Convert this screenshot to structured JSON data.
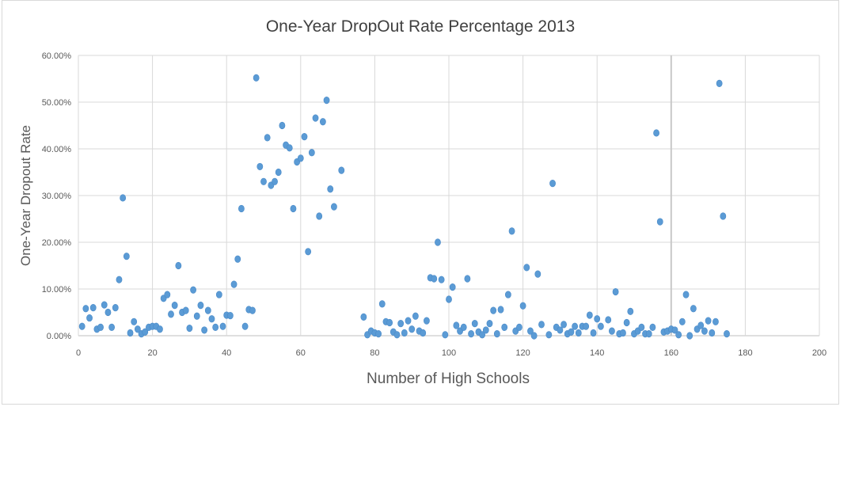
{
  "chart_data": {
    "type": "scatter",
    "title": "One-Year DropOut  Rate Percentage 2013",
    "xlabel": "Number of High Schools",
    "ylabel": "One-Year Dropout Rate",
    "xlim": [
      0,
      200
    ],
    "ylim": [
      0,
      60
    ],
    "x_ticks": [
      "0",
      "20",
      "40",
      "60",
      "80",
      "100",
      "120",
      "140",
      "160",
      "180",
      "200"
    ],
    "y_ticks": [
      "0.00%",
      "10.00%",
      "20.00%",
      "30.00%",
      "40.00%",
      "50.00%",
      "60.00%"
    ],
    "grid": true,
    "marker_color": "#5b9bd5",
    "points": [
      [
        1,
        2.0
      ],
      [
        2,
        5.8
      ],
      [
        3,
        3.8
      ],
      [
        4,
        6.0
      ],
      [
        5,
        1.4
      ],
      [
        6,
        1.8
      ],
      [
        7,
        6.6
      ],
      [
        8,
        5.0
      ],
      [
        9,
        1.8
      ],
      [
        10,
        6.0
      ],
      [
        11,
        12.0
      ],
      [
        12,
        29.5
      ],
      [
        13,
        17.0
      ],
      [
        14,
        0.6
      ],
      [
        15,
        3.0
      ],
      [
        16,
        1.4
      ],
      [
        17,
        0.4
      ],
      [
        18,
        0.8
      ],
      [
        19,
        1.8
      ],
      [
        20,
        2.0
      ],
      [
        21,
        2.0
      ],
      [
        22,
        1.4
      ],
      [
        23,
        8.0
      ],
      [
        24,
        8.8
      ],
      [
        25,
        4.6
      ],
      [
        26,
        6.5
      ],
      [
        27,
        15.0
      ],
      [
        28,
        5.0
      ],
      [
        29,
        5.4
      ],
      [
        30,
        1.6
      ],
      [
        31,
        9.8
      ],
      [
        32,
        4.2
      ],
      [
        33,
        6.5
      ],
      [
        34,
        1.2
      ],
      [
        35,
        5.4
      ],
      [
        36,
        3.6
      ],
      [
        37,
        1.8
      ],
      [
        38,
        8.8
      ],
      [
        39,
        2.0
      ],
      [
        40,
        4.4
      ],
      [
        41,
        4.3
      ],
      [
        42,
        11.0
      ],
      [
        43,
        16.4
      ],
      [
        44,
        27.2
      ],
      [
        45,
        2.0
      ],
      [
        46,
        5.6
      ],
      [
        47,
        5.4
      ],
      [
        48,
        55.2
      ],
      [
        49,
        36.2
      ],
      [
        50,
        33.0
      ],
      [
        51,
        42.4
      ],
      [
        52,
        32.2
      ],
      [
        53,
        33.0
      ],
      [
        54,
        35.0
      ],
      [
        55,
        45.0
      ],
      [
        56,
        40.8
      ],
      [
        57,
        40.2
      ],
      [
        58,
        27.2
      ],
      [
        59,
        37.2
      ],
      [
        60,
        38.0
      ],
      [
        61,
        42.6
      ],
      [
        62,
        18.0
      ],
      [
        63,
        39.2
      ],
      [
        64,
        46.6
      ],
      [
        65,
        25.6
      ],
      [
        66,
        45.8
      ],
      [
        67,
        50.4
      ],
      [
        68,
        31.4
      ],
      [
        69,
        27.6
      ],
      [
        71,
        35.4
      ],
      [
        77,
        4.0
      ],
      [
        78,
        0.2
      ],
      [
        79,
        1.0
      ],
      [
        80,
        0.6
      ],
      [
        81,
        0.4
      ],
      [
        82,
        6.8
      ],
      [
        83,
        3.0
      ],
      [
        84,
        2.8
      ],
      [
        85,
        0.8
      ],
      [
        86,
        0.2
      ],
      [
        87,
        2.6
      ],
      [
        88,
        0.6
      ],
      [
        89,
        3.2
      ],
      [
        90,
        1.4
      ],
      [
        91,
        4.2
      ],
      [
        92,
        1.0
      ],
      [
        93,
        0.6
      ],
      [
        94,
        3.2
      ],
      [
        95,
        12.4
      ],
      [
        96,
        12.2
      ],
      [
        97,
        20.0
      ],
      [
        98,
        12.0
      ],
      [
        99,
        0.2
      ],
      [
        100,
        7.8
      ],
      [
        101,
        10.4
      ],
      [
        102,
        2.2
      ],
      [
        103,
        1.0
      ],
      [
        104,
        1.8
      ],
      [
        105,
        12.2
      ],
      [
        106,
        0.4
      ],
      [
        107,
        2.6
      ],
      [
        108,
        0.8
      ],
      [
        109,
        0.2
      ],
      [
        110,
        1.2
      ],
      [
        111,
        2.6
      ],
      [
        112,
        5.4
      ],
      [
        113,
        0.4
      ],
      [
        114,
        5.6
      ],
      [
        115,
        1.8
      ],
      [
        116,
        8.8
      ],
      [
        117,
        22.4
      ],
      [
        118,
        1.0
      ],
      [
        119,
        1.8
      ],
      [
        120,
        6.4
      ],
      [
        121,
        14.6
      ],
      [
        122,
        1.0
      ],
      [
        123,
        0.0
      ],
      [
        124,
        13.2
      ],
      [
        125,
        2.4
      ],
      [
        127,
        0.2
      ],
      [
        128,
        32.6
      ],
      [
        129,
        1.8
      ],
      [
        130,
        1.2
      ],
      [
        131,
        2.4
      ],
      [
        132,
        0.4
      ],
      [
        133,
        0.8
      ],
      [
        134,
        2.0
      ],
      [
        135,
        0.6
      ],
      [
        136,
        2.0
      ],
      [
        137,
        2.0
      ],
      [
        138,
        4.4
      ],
      [
        139,
        0.6
      ],
      [
        140,
        3.6
      ],
      [
        141,
        2.0
      ],
      [
        143,
        3.4
      ],
      [
        144,
        1.0
      ],
      [
        145,
        9.4
      ],
      [
        146,
        0.4
      ],
      [
        147,
        0.6
      ],
      [
        148,
        2.8
      ],
      [
        149,
        5.2
      ],
      [
        150,
        0.4
      ],
      [
        151,
        1.0
      ],
      [
        152,
        1.8
      ],
      [
        153,
        0.4
      ],
      [
        154,
        0.4
      ],
      [
        155,
        1.8
      ],
      [
        156,
        43.4
      ],
      [
        157,
        24.4
      ],
      [
        158,
        0.8
      ],
      [
        159,
        1.0
      ],
      [
        160,
        1.4
      ],
      [
        161,
        1.2
      ],
      [
        162,
        0.2
      ],
      [
        163,
        3.0
      ],
      [
        164,
        8.8
      ],
      [
        165,
        0.0
      ],
      [
        166,
        5.8
      ],
      [
        167,
        1.4
      ],
      [
        168,
        2.2
      ],
      [
        169,
        1.0
      ],
      [
        170,
        3.2
      ],
      [
        171,
        0.6
      ],
      [
        172,
        3.0
      ],
      [
        173,
        54.0
      ],
      [
        174,
        25.6
      ],
      [
        175,
        0.4
      ]
    ]
  }
}
